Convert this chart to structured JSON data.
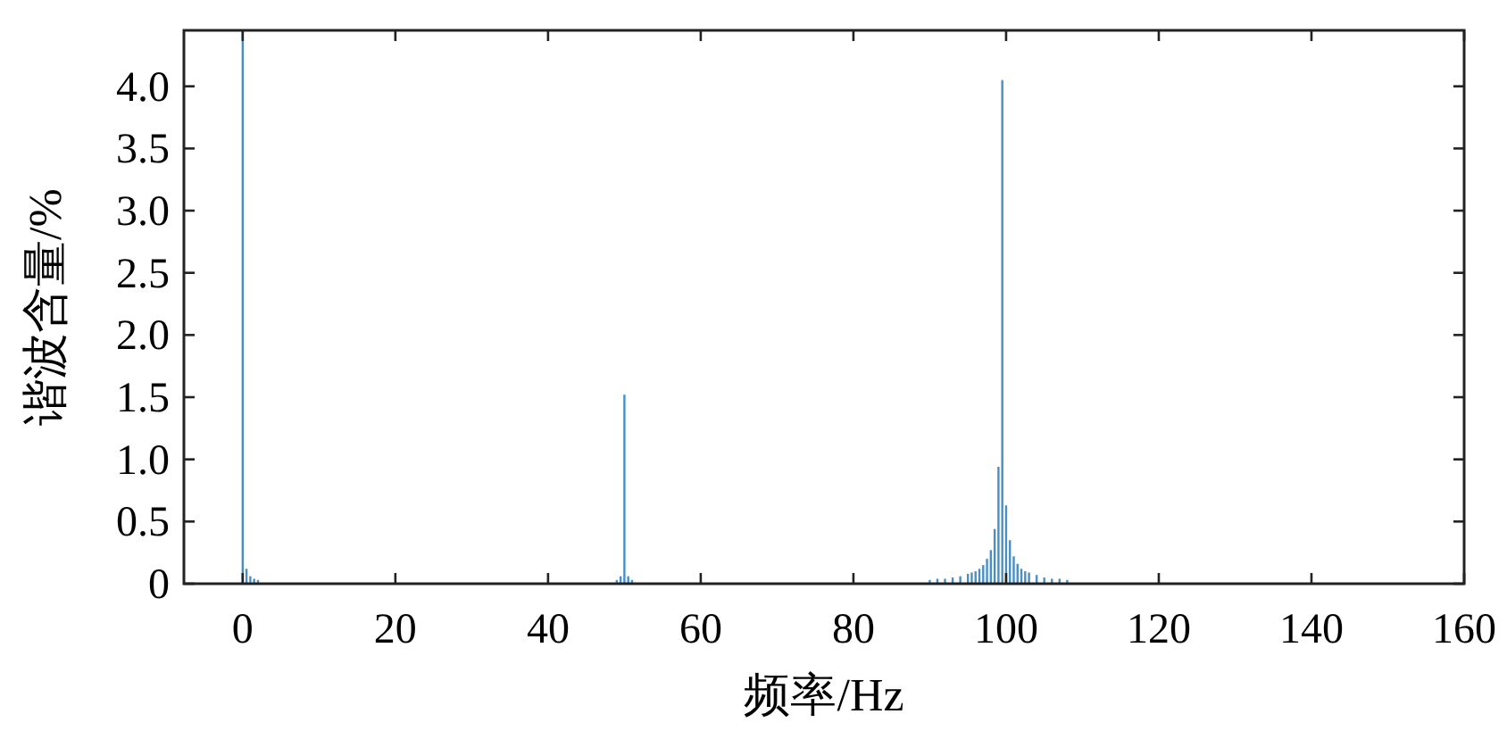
{
  "chart_data": {
    "type": "bar",
    "xlabel": "频率/Hz",
    "ylabel": "谐波含量/%",
    "color": "#4a8fc4",
    "x": [
      0,
      0.5,
      1,
      1.5,
      2,
      49,
      49.5,
      50,
      50.5,
      51,
      90,
      91,
      92,
      93,
      94,
      95,
      95.5,
      96,
      96.5,
      97,
      97.5,
      98,
      98.5,
      99,
      99.5,
      100,
      100.5,
      101,
      101.5,
      102,
      102.5,
      103,
      104,
      105,
      106,
      107,
      108
    ],
    "values": [
      4.45,
      0.12,
      0.06,
      0.04,
      0.03,
      0.03,
      0.06,
      1.52,
      0.06,
      0.03,
      0.03,
      0.04,
      0.04,
      0.05,
      0.06,
      0.08,
      0.09,
      0.1,
      0.12,
      0.15,
      0.2,
      0.27,
      0.44,
      0.94,
      4.05,
      0.63,
      0.35,
      0.22,
      0.16,
      0.12,
      0.1,
      0.09,
      0.07,
      0.05,
      0.04,
      0.04,
      0.03
    ],
    "xlim": [
      -7.7,
      160
    ],
    "ylim": [
      0,
      4.45
    ],
    "xticks": [
      0,
      20,
      40,
      60,
      80,
      100,
      120,
      140,
      160
    ],
    "yticks": [
      0,
      0.5,
      {
        "value": 1,
        "label": "1.0"
      },
      1.5,
      {
        "value": 2,
        "label": "2.0"
      },
      2.5,
      {
        "value": 3,
        "label": "3.0"
      },
      3.5,
      {
        "value": 4,
        "label": "4.0"
      }
    ]
  }
}
